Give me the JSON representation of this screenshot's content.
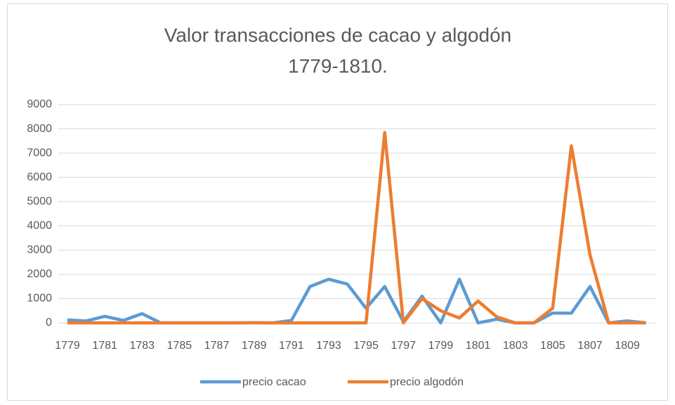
{
  "chart_data": {
    "type": "line",
    "title": [
      "Valor transacciones de cacao y algodón",
      "1779-1810."
    ],
    "categories": [
      "1779",
      null,
      "1781",
      null,
      "1783",
      null,
      "1785",
      null,
      "1787",
      null,
      "1789",
      null,
      "1791",
      null,
      "1793",
      null,
      "1795",
      null,
      "1797",
      null,
      "1799",
      null,
      "1801",
      null,
      "1803",
      null,
      "1805",
      null,
      "1807",
      null,
      "1809",
      null
    ],
    "series": [
      {
        "name": "precio cacao",
        "color": "#5b9bd5",
        "values": [
          120,
          80,
          270,
          100,
          380,
          0,
          0,
          0,
          0,
          0,
          10,
          0,
          100,
          1500,
          1800,
          1600,
          600,
          1500,
          50,
          1100,
          0,
          1800,
          0,
          150,
          0,
          0,
          400,
          400,
          1500,
          0,
          80,
          0
        ]
      },
      {
        "name": "precio algodón",
        "color": "#ed7d31",
        "values": [
          0,
          0,
          0,
          0,
          0,
          0,
          0,
          0,
          0,
          0,
          0,
          0,
          0,
          0,
          0,
          0,
          0,
          7850,
          0,
          1000,
          500,
          200,
          900,
          250,
          0,
          0,
          600,
          7300,
          2800,
          0,
          0,
          0
        ]
      }
    ],
    "ylim": [
      0,
      9000
    ],
    "yticks": [
      0,
      1000,
      2000,
      3000,
      4000,
      5000,
      6000,
      7000,
      8000,
      9000
    ],
    "grid": true,
    "legend": "bottom"
  }
}
